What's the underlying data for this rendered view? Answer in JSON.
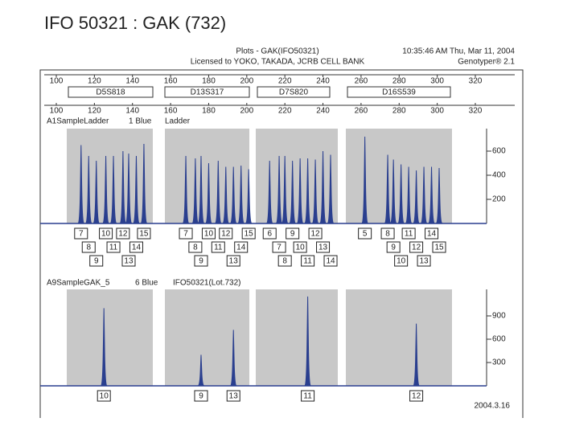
{
  "header": {
    "title": "IFO 50321 : GAK (732)",
    "plot_title": "Plots - GAK(IFO50321)",
    "timestamp": "10:35:46 AM Thu, Mar 11, 2004",
    "license": "Licensed to YOKO, TAKADA, JCRB CELL BANK",
    "software": "Genotyper® 2.1"
  },
  "size_axis": {
    "ticks": [
      100,
      120,
      140,
      160,
      180,
      200,
      220,
      240,
      260,
      280,
      300,
      320
    ]
  },
  "markers": [
    "D5S818",
    "D13S317",
    "D7S820",
    "D16S539"
  ],
  "ladder": {
    "sample": "A1SampleLadder",
    "dye": "1 Blue",
    "name": "Ladder",
    "yticks": [
      200,
      400,
      600
    ],
    "peaks": [
      {
        "allele": "7",
        "size": 113,
        "height": 650
      },
      {
        "allele": "8",
        "size": 117,
        "height": 560
      },
      {
        "allele": "9",
        "size": 121,
        "height": 520
      },
      {
        "allele": "10",
        "size": 126,
        "height": 560
      },
      {
        "allele": "11",
        "size": 130,
        "height": 560
      },
      {
        "allele": "12",
        "size": 135,
        "height": 600
      },
      {
        "allele": "13",
        "size": 138,
        "height": 580
      },
      {
        "allele": "14",
        "size": 142,
        "height": 560
      },
      {
        "allele": "15",
        "size": 146,
        "height": 660
      },
      {
        "allele": "7",
        "size": 168,
        "height": 560
      },
      {
        "allele": "8",
        "size": 173,
        "height": 540
      },
      {
        "allele": "9",
        "size": 176,
        "height": 560
      },
      {
        "allele": "10",
        "size": 180,
        "height": 500
      },
      {
        "allele": "11",
        "size": 185,
        "height": 520
      },
      {
        "allele": "12",
        "size": 189,
        "height": 470
      },
      {
        "allele": "13",
        "size": 193,
        "height": 470
      },
      {
        "allele": "14",
        "size": 197,
        "height": 480
      },
      {
        "allele": "15",
        "size": 201,
        "height": 450
      },
      {
        "allele": "6",
        "size": 212,
        "height": 520
      },
      {
        "allele": "7",
        "size": 217,
        "height": 560
      },
      {
        "allele": "8",
        "size": 220,
        "height": 560
      },
      {
        "allele": "9",
        "size": 224,
        "height": 520
      },
      {
        "allele": "10",
        "size": 228,
        "height": 540
      },
      {
        "allele": "11",
        "size": 232,
        "height": 540
      },
      {
        "allele": "12",
        "size": 236,
        "height": 530
      },
      {
        "allele": "13",
        "size": 240,
        "height": 600
      },
      {
        "allele": "14",
        "size": 244,
        "height": 570
      },
      {
        "allele": "5",
        "size": 262,
        "height": 720
      },
      {
        "allele": "8",
        "size": 274,
        "height": 570
      },
      {
        "allele": "9",
        "size": 277,
        "height": 530
      },
      {
        "allele": "10",
        "size": 281,
        "height": 490
      },
      {
        "allele": "11",
        "size": 285,
        "height": 470
      },
      {
        "allele": "12",
        "size": 289,
        "height": 440
      },
      {
        "allele": "13",
        "size": 293,
        "height": 470
      },
      {
        "allele": "14",
        "size": 297,
        "height": 470
      },
      {
        "allele": "15",
        "size": 301,
        "height": 460
      }
    ]
  },
  "sample": {
    "sample": "A9SampleGAK_5",
    "dye": "6 Blue",
    "name": "IFO50321(Lot.732)",
    "yticks": [
      300,
      600,
      900
    ],
    "peaks": [
      {
        "allele": "10",
        "size": 125,
        "height": 1000
      },
      {
        "allele": "9",
        "size": 176,
        "height": 400
      },
      {
        "allele": "13",
        "size": 193,
        "height": 720
      },
      {
        "allele": "11",
        "size": 232,
        "height": 1150
      },
      {
        "allele": "12",
        "size": 289,
        "height": 800
      }
    ]
  },
  "footer": {
    "date": "2004.3.16"
  }
}
